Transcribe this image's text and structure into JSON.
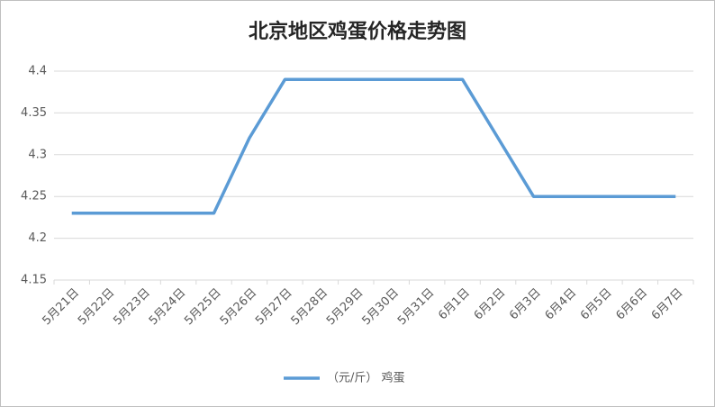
{
  "chart_data": {
    "type": "line",
    "title": "北京地区鸡蛋价格走势图",
    "categories": [
      "5月21日",
      "5月22日",
      "5月23日",
      "5月24日",
      "5月25日",
      "5月26日",
      "5月27日",
      "5月28日",
      "5月29日",
      "5月30日",
      "5月31日",
      "6月1日",
      "6月2日",
      "6月3日",
      "6月4日",
      "6月5日",
      "6月6日",
      "6月7日"
    ],
    "series": [
      {
        "name": "（元/斤） 鸡蛋",
        "color": "#5b9bd5",
        "values": [
          4.23,
          4.23,
          4.23,
          4.23,
          4.23,
          4.32,
          4.39,
          4.39,
          4.39,
          4.39,
          4.39,
          4.39,
          4.32,
          4.25,
          4.25,
          4.25,
          4.25,
          4.25
        ]
      }
    ],
    "ylim": [
      4.15,
      4.4
    ],
    "yticks": [
      4.15,
      4.2,
      4.25,
      4.3,
      4.35,
      4.4
    ],
    "grid": true,
    "legend": "bottom"
  }
}
